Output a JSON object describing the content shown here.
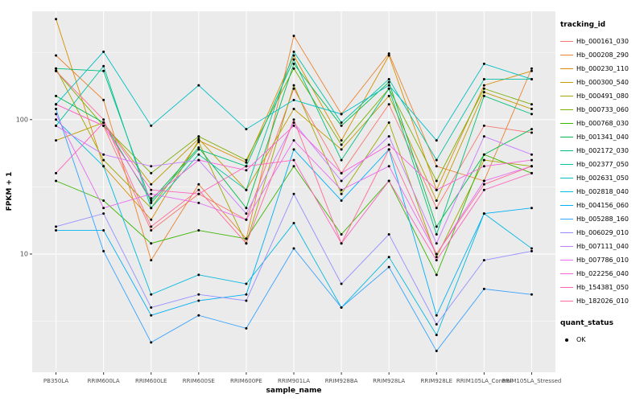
{
  "chart_data": {
    "type": "line",
    "title": "",
    "xlabel": "sample_name",
    "ylabel": "FPKM + 1",
    "y_scale": "log10",
    "ylim": [
      1.32,
      640
    ],
    "y_ticks": [
      100,
      10
    ],
    "y_minor_ticks": [
      3.162,
      31.62,
      316.2
    ],
    "grid": true,
    "legend_position": "right",
    "legend_title": "tracking_id",
    "quant_legend": {
      "title": "quant_status",
      "entries": [
        "OK"
      ]
    },
    "style": {
      "panel_bg": "#EBEBEB",
      "grid": "#FFFFFF",
      "point": "#000000",
      "tick": "#333333",
      "axis_text": "#4D4D4D"
    },
    "categories": [
      "PB350LA",
      "RRIM600LA",
      "RRIM600LE",
      "RRIM600SE",
      "RRIM600PE",
      "RRIM901LA",
      "RRIM928BA",
      "RRIM928LA",
      "RRIM928LE",
      "RRIM105LA_Control",
      "RRIM105LA_Stressed"
    ],
    "series": [
      {
        "name": "Hb_000161_030",
        "color": "#F8766D",
        "values": [
          130,
          90,
          15,
          28,
          18,
          170,
          40,
          130,
          22,
          90,
          80
        ]
      },
      {
        "name": "Hb_000208_290",
        "color": "#EA8331",
        "values": [
          300,
          140,
          9,
          33,
          13,
          420,
          110,
          310,
          45,
          35,
          240
        ]
      },
      {
        "name": "Hb_000230_110",
        "color": "#D89000",
        "values": [
          560,
          45,
          18,
          70,
          48,
          300,
          70,
          300,
          30,
          180,
          230
        ]
      },
      {
        "name": "Hb_000300_540",
        "color": "#C09B00",
        "values": [
          70,
          95,
          33,
          72,
          30,
          120,
          60,
          150,
          25,
          160,
          120
        ]
      },
      {
        "name": "Hb_000491_080",
        "color": "#A3A500",
        "values": [
          240,
          50,
          22,
          68,
          12,
          180,
          28,
          95,
          9.5,
          50,
          45
        ]
      },
      {
        "name": "Hb_000733_060",
        "color": "#7CAE00",
        "values": [
          230,
          90,
          40,
          75,
          50,
          240,
          65,
          170,
          35,
          170,
          130
        ]
      },
      {
        "name": "Hb_000768_030",
        "color": "#39B600",
        "values": [
          35,
          25,
          12,
          15,
          13,
          45,
          14,
          35,
          7,
          55,
          40
        ]
      },
      {
        "name": "Hb_001341_040",
        "color": "#00BB4E",
        "values": [
          150,
          95,
          25,
          62,
          22,
          260,
          90,
          190,
          16,
          55,
          85
        ]
      },
      {
        "name": "Hb_002172_030",
        "color": "#00BF7D",
        "values": [
          240,
          230,
          24,
          60,
          45,
          280,
          50,
          170,
          14,
          150,
          110
        ]
      },
      {
        "name": "Hb_002377_050",
        "color": "#00C1A3",
        "values": [
          90,
          250,
          22,
          55,
          30,
          320,
          95,
          200,
          50,
          200,
          200
        ]
      },
      {
        "name": "Hb_002631_050",
        "color": "#00BFC4",
        "values": [
          130,
          320,
          90,
          180,
          85,
          140,
          110,
          180,
          70,
          260,
          200
        ]
      },
      {
        "name": "Hb_002818_040",
        "color": "#00BAE0",
        "values": [
          100,
          45,
          5,
          7,
          6,
          17,
          4,
          9.5,
          2.5,
          20,
          11
        ]
      },
      {
        "name": "Hb_004156_060",
        "color": "#00B0F6",
        "values": [
          15,
          15,
          3.5,
          4.5,
          5,
          60,
          25,
          60,
          3.5,
          20,
          22
        ]
      },
      {
        "name": "Hb_005288_160",
        "color": "#35A2FF",
        "values": [
          120,
          10.5,
          2.2,
          3.5,
          2.8,
          11,
          4,
          8,
          1.9,
          5.5,
          5
        ]
      },
      {
        "name": "Hb_006029_010",
        "color": "#9590FF",
        "values": [
          16,
          20,
          4,
          5,
          4.5,
          28,
          6,
          14,
          3,
          9,
          10.5
        ]
      },
      {
        "name": "Hb_007111_040",
        "color": "#C77CFF",
        "values": [
          90,
          55,
          45,
          50,
          20,
          95,
          35,
          75,
          12,
          75,
          55
        ]
      },
      {
        "name": "Hb_007786_010",
        "color": "#E76BF3",
        "values": [
          110,
          22,
          28,
          24,
          18,
          70,
          30,
          45,
          10,
          35,
          45
        ]
      },
      {
        "name": "Hb_022256_040",
        "color": "#FA62DB",
        "values": [
          130,
          90,
          26,
          50,
          42,
          90,
          40,
          65,
          30,
          45,
          50
        ]
      },
      {
        "name": "Hb_154381_050",
        "color": "#FF62BC",
        "values": [
          40,
          95,
          30,
          28,
          45,
          50,
          12,
          35,
          9,
          30,
          40
        ]
      },
      {
        "name": "Hb_182026_010",
        "color": "#FF6A98",
        "values": [
          230,
          100,
          16,
          30,
          12,
          100,
          12,
          60,
          10,
          33,
          45
        ]
      }
    ]
  }
}
